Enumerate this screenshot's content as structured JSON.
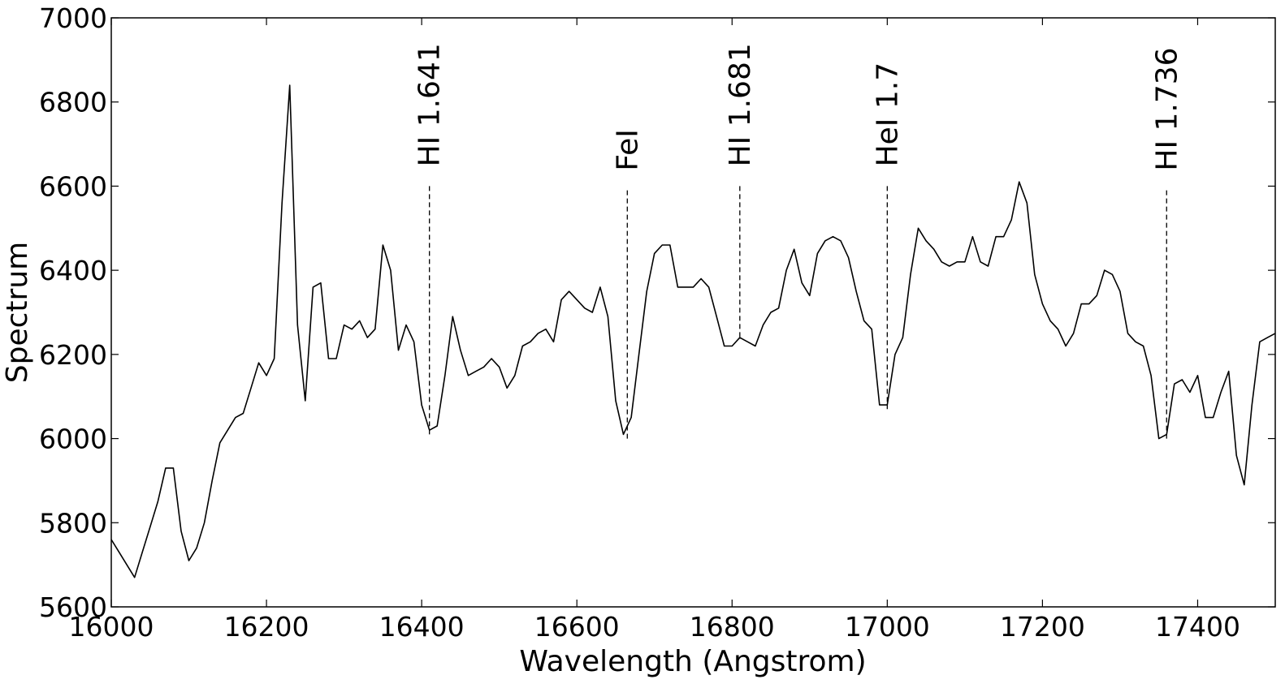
{
  "chart_data": {
    "type": "line",
    "title": "",
    "xlabel": "Wavelength (Angstrom)",
    "ylabel": "Spectrum",
    "xlim": [
      16000,
      17500
    ],
    "ylim": [
      5600,
      7000
    ],
    "xticks": [
      16000,
      16200,
      16400,
      16600,
      16800,
      17000,
      17200,
      17400
    ],
    "yticks": [
      5600,
      5800,
      6000,
      6200,
      6400,
      6600,
      6800,
      7000
    ],
    "grid": false,
    "legend": "none",
    "line_color": "#000000",
    "series": [
      {
        "x": [
          16000,
          16010,
          16020,
          16030,
          16040,
          16050,
          16060,
          16070,
          16080,
          16090,
          16100,
          16110,
          16120,
          16130,
          16140,
          16150,
          16160,
          16170,
          16180,
          16190,
          16200,
          16210,
          16220,
          16230,
          16240,
          16250,
          16260,
          16270,
          16280,
          16290,
          16300,
          16310,
          16320,
          16330,
          16340,
          16350,
          16360,
          16370,
          16380,
          16390,
          16400,
          16410,
          16420,
          16430,
          16440,
          16450,
          16460,
          16470,
          16480,
          16490,
          16500,
          16510,
          16520,
          16530,
          16540,
          16550,
          16560,
          16570,
          16580,
          16590,
          16600,
          16610,
          16620,
          16630,
          16640,
          16650,
          16660,
          16670,
          16680,
          16690,
          16700,
          16710,
          16720,
          16730,
          16740,
          16750,
          16760,
          16770,
          16780,
          16790,
          16800,
          16810,
          16820,
          16830,
          16840,
          16850,
          16860,
          16870,
          16880,
          16890,
          16900,
          16910,
          16920,
          16930,
          16940,
          16950,
          16960,
          16970,
          16980,
          16990,
          17000,
          17010,
          17020,
          17030,
          17040,
          17050,
          17060,
          17070,
          17080,
          17090,
          17100,
          17110,
          17120,
          17130,
          17140,
          17150,
          17160,
          17170,
          17180,
          17190,
          17200,
          17210,
          17220,
          17230,
          17240,
          17250,
          17260,
          17270,
          17280,
          17290,
          17300,
          17310,
          17320,
          17330,
          17340,
          17350,
          17360,
          17370,
          17380,
          17390,
          17400,
          17410,
          17420,
          17430,
          17440,
          17450,
          17460,
          17470,
          17480,
          17490,
          17500
        ],
        "y": [
          5760,
          5730,
          5700,
          5670,
          5730,
          5790,
          5850,
          5930,
          5930,
          5780,
          5710,
          5740,
          5800,
          5900,
          5990,
          6020,
          6050,
          6060,
          6120,
          6180,
          6150,
          6190,
          6560,
          6840,
          6270,
          6090,
          6360,
          6370,
          6190,
          6190,
          6270,
          6260,
          6280,
          6240,
          6260,
          6460,
          6400,
          6210,
          6270,
          6230,
          6080,
          6020,
          6030,
          6150,
          6290,
          6210,
          6150,
          6160,
          6170,
          6190,
          6170,
          6120,
          6150,
          6220,
          6230,
          6250,
          6260,
          6230,
          6330,
          6350,
          6330,
          6310,
          6300,
          6360,
          6290,
          6090,
          6010,
          6050,
          6200,
          6350,
          6440,
          6460,
          6460,
          6360,
          6360,
          6360,
          6380,
          6360,
          6290,
          6220,
          6220,
          6240,
          6230,
          6220,
          6270,
          6300,
          6310,
          6400,
          6450,
          6370,
          6340,
          6440,
          6470,
          6480,
          6470,
          6430,
          6350,
          6280,
          6260,
          6080,
          6080,
          6200,
          6240,
          6390,
          6500,
          6470,
          6450,
          6420,
          6410,
          6420,
          6420,
          6480,
          6420,
          6410,
          6480,
          6480,
          6520,
          6610,
          6560,
          6390,
          6320,
          6280,
          6260,
          6220,
          6250,
          6320,
          6320,
          6340,
          6400,
          6390,
          6350,
          6250,
          6230,
          6220,
          6150,
          6000,
          6010,
          6130,
          6140,
          6110,
          6150,
          6050,
          6050,
          6110,
          6160,
          5960,
          5890,
          6080,
          6230,
          6240,
          6250
        ]
      }
    ],
    "annotations": [
      {
        "label": "HI 1.641",
        "x": 16410,
        "y_bottom": 6010,
        "y_top": 6600
      },
      {
        "label": "FeI",
        "x": 16665,
        "y_bottom": 6000,
        "y_top": 6590
      },
      {
        "label": "HI 1.681",
        "x": 16810,
        "y_bottom": 6240,
        "y_top": 6600
      },
      {
        "label": "HeI 1.7",
        "x": 17000,
        "y_bottom": 6070,
        "y_top": 6600
      },
      {
        "label": "HI 1.736",
        "x": 17360,
        "y_bottom": 6000,
        "y_top": 6590
      }
    ]
  }
}
